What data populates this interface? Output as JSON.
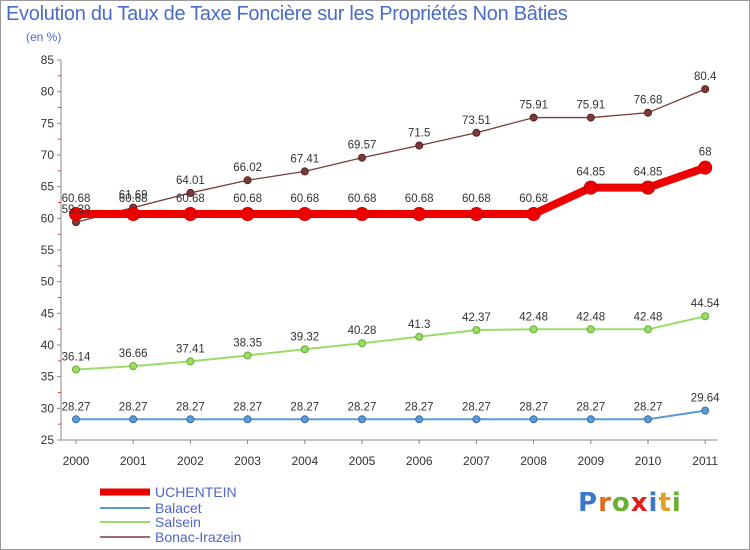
{
  "header": {
    "title": "Evolution du Taux de Taxe Foncière sur les Propriétés Non Bâties",
    "unit": "(en %)"
  },
  "brand": {
    "letters": [
      "P",
      "r",
      "o",
      "x",
      "i",
      "t",
      "i"
    ],
    "colors": [
      "#3a78c8",
      "#e06a1b",
      "#6ab22e",
      "#e02020",
      "#3a78c8",
      "#e0a020",
      "#6ab22e"
    ]
  },
  "chart_data": {
    "type": "line",
    "title": "Evolution du Taux de Taxe Foncière sur les Propriétés Non Bâties",
    "ylabel": "(en %)",
    "xlabel": "",
    "ylim": [
      25,
      85
    ],
    "yticks": [
      25,
      30,
      35,
      40,
      45,
      50,
      55,
      60,
      65,
      70,
      75,
      80,
      85
    ],
    "grid": false,
    "legend_position": "bottom-left",
    "categories": [
      "2000",
      "2001",
      "2002",
      "2003",
      "2004",
      "2005",
      "2006",
      "2007",
      "2008",
      "2009",
      "2010",
      "2011"
    ],
    "series": [
      {
        "name": "UCHENTEIN",
        "color": "#ee0000",
        "values": [
          60.68,
          60.68,
          60.68,
          60.68,
          60.68,
          60.68,
          60.68,
          60.68,
          60.68,
          64.85,
          64.85,
          68
        ],
        "labels": [
          "60.68",
          "60.68",
          "60.68",
          "60.68",
          "60.68",
          "60.68",
          "60.68",
          "60.68",
          "60.68",
          "64.85",
          "64.85",
          "68"
        ]
      },
      {
        "name": "Balacet",
        "color": "#5a9bd5",
        "values": [
          28.27,
          28.27,
          28.27,
          28.27,
          28.27,
          28.27,
          28.27,
          28.27,
          28.27,
          28.27,
          28.27,
          29.64
        ],
        "labels": [
          "28.27",
          "28.27",
          "28.27",
          "28.27",
          "28.27",
          "28.27",
          "28.27",
          "28.27",
          "28.27",
          "28.27",
          "28.27",
          "29.64"
        ]
      },
      {
        "name": "Salsein",
        "color": "#99dd66",
        "values": [
          36.14,
          36.66,
          37.41,
          38.35,
          39.32,
          40.28,
          41.3,
          42.37,
          42.48,
          42.48,
          42.48,
          44.54
        ],
        "labels": [
          "36.14",
          "36.66",
          "37.41",
          "38.35",
          "39.32",
          "40.28",
          "41.3",
          "42.37",
          "42.48",
          "42.48",
          "42.48",
          "44.54"
        ]
      },
      {
        "name": "Bonac-Irazein",
        "color": "#7a3b3b",
        "values": [
          59.39,
          61.69,
          64.01,
          66.02,
          67.41,
          69.57,
          71.5,
          73.51,
          75.91,
          75.91,
          76.68,
          80.4
        ],
        "labels": [
          "59.39",
          "61.69",
          "64.01",
          "66.02",
          "67.41",
          "69.57",
          "71.5",
          "73.51",
          "75.91",
          "75.91",
          "76.68",
          "80.4"
        ]
      }
    ]
  }
}
